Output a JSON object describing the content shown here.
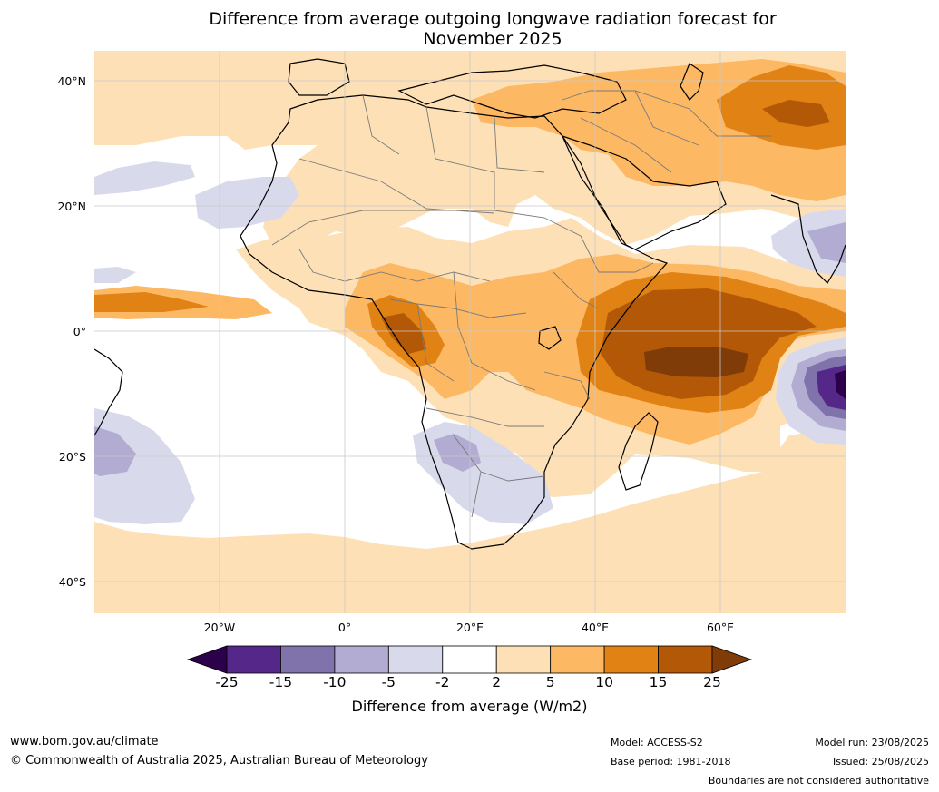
{
  "title": {
    "line1": "Difference from average outgoing longwave radiation forecast for",
    "line2": "November 2025"
  },
  "axes": {
    "lat_labels": [
      "40°N",
      "20°N",
      "0°",
      "20°S",
      "40°S"
    ],
    "lon_labels": [
      "20°W",
      "0°",
      "20°E",
      "40°E",
      "60°E"
    ]
  },
  "colorbar": {
    "title": "Difference from average (W/m2)",
    "tick_labels": [
      "-25",
      "-15",
      "-10",
      "-5",
      "-2",
      "2",
      "5",
      "10",
      "15",
      "25"
    ],
    "colors": [
      "#2d004b",
      "#542788",
      "#8073ac",
      "#b2abd2",
      "#d8daeb",
      "#ffffff",
      "#fee0b6",
      "#fdb863",
      "#e08214",
      "#b35806",
      "#7f3b08"
    ]
  },
  "footer": {
    "url": "www.bom.gov.au/climate",
    "copyright": "© Commonwealth of Australia 2025, Australian Bureau of Meteorology",
    "model": "Model: ACCESS-S2",
    "base_period": "Base period: 1981-2018",
    "model_run": "Model run: 23/08/2025",
    "issued": "Issued: 25/08/2025",
    "disclaimer": "Boundaries are not considered authoritative"
  }
}
